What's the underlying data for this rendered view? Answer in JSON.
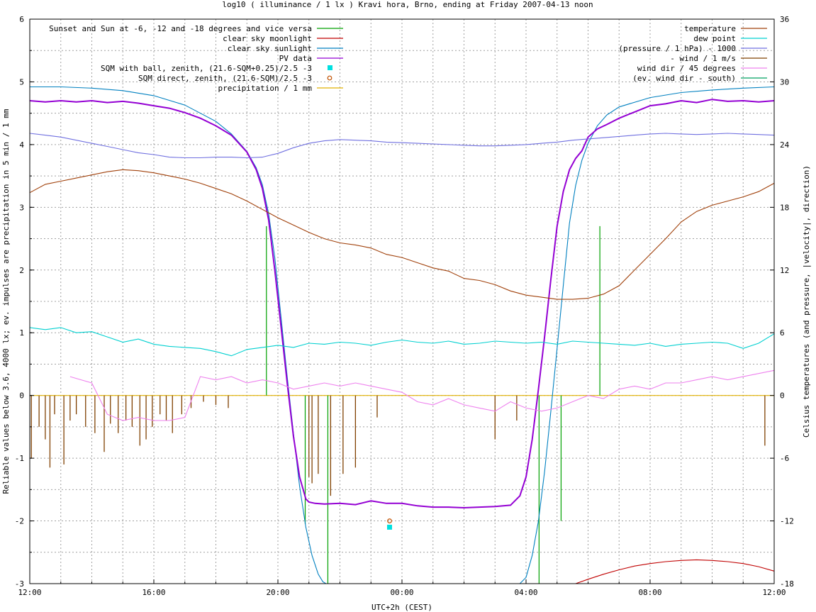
{
  "chart_data": {
    "type": "line",
    "title": "log10 ( illuminance / 1 lx ) Kravi hora, Brno, ending at Friday 2007-04-13 noon",
    "xlabel": "UTC+2h (CEST)",
    "ylabel": "Reliable values below 3.6, 4000 lx; ev. impulses are precipitation in 5 min / 1 mm",
    "y2label": "Celsius temperatures (and pressure, |velocity|, direction)",
    "xlim": [
      0,
      24
    ],
    "ylim": [
      -3,
      6
    ],
    "y2lim": [
      -18,
      36
    ],
    "grid": true,
    "x_tick_labels": [
      "12:00",
      "16:00",
      "20:00",
      "00:00",
      "04:00",
      "08:00",
      "12:00"
    ],
    "x_tick_values": [
      0,
      4,
      8,
      12,
      16,
      20,
      24
    ],
    "y_tick_labels": [
      "-3",
      "-2",
      "-1",
      "0",
      "1",
      "2",
      "3",
      "4",
      "5",
      "6"
    ],
    "y_tick_values": [
      -3,
      -2,
      -1,
      0,
      1,
      2,
      3,
      4,
      5,
      6
    ],
    "y2_tick_labels": [
      "-18",
      "-12",
      "-6",
      "0",
      "6",
      "12",
      "18",
      "24",
      "30",
      "36"
    ],
    "y2_tick_values": [
      -18,
      -12,
      -6,
      0,
      6,
      12,
      18,
      24,
      30,
      36
    ],
    "legend_left": [
      {
        "label": "Sunset and Sun at -6, -12 and -18 degrees and vice versa",
        "color": "#00a000",
        "style": "line"
      },
      {
        "label": "clear sky moonlight",
        "color": "#c00000",
        "style": "line"
      },
      {
        "label": "clear sky sunlight",
        "color": "#0080c0",
        "style": "line"
      },
      {
        "label": "PV data",
        "color": "#9400d3",
        "style": "line"
      },
      {
        "label": "SQM with ball, zenith, (21.6-SQM+0.25)/2.5 -3",
        "color": "#00e0e0",
        "style": "square"
      },
      {
        "label": "SQM direct, zenith, (21.6-SQM)/2.5 -3",
        "color": "#c05000",
        "style": "circle"
      },
      {
        "label": "precipitation / 1 mm",
        "color": "#e0b000",
        "style": "line"
      }
    ],
    "legend_right": [
      {
        "label": "temperature",
        "color": "#a0400a",
        "style": "line"
      },
      {
        "label": "dew point",
        "color": "#00d0d0",
        "style": "line"
      },
      {
        "label": "(pressure / 1 hPa) - 1000",
        "color": "#7070e0",
        "style": "line"
      },
      {
        "label": "- wind / 1 m/s",
        "color": "#804000",
        "style": "line"
      },
      {
        "label": "wind dir / 45 degrees",
        "color": "#ee82ee",
        "style": "line"
      },
      {
        "label": "(ev. wind dir - south)",
        "color": "#00a060",
        "style": "line"
      }
    ],
    "series": [
      {
        "name": "clear sky sunlight",
        "axis": "y1",
        "color": "#0080c0",
        "x": [
          0,
          1,
          2,
          3,
          4,
          5,
          6,
          6.5,
          7,
          7.3,
          7.5,
          7.7,
          7.9,
          8.1,
          8.3,
          8.5,
          8.7,
          8.9,
          9.1,
          9.3,
          9.45,
          9.55,
          9.6,
          15.8,
          16.0,
          16.2,
          16.4,
          16.6,
          16.8,
          17.0,
          17.2,
          17.4,
          17.6,
          17.8,
          18.0,
          18.3,
          18.6,
          19,
          20,
          21,
          22,
          23,
          24
        ],
        "y": [
          4.92,
          4.92,
          4.9,
          4.86,
          4.78,
          4.63,
          4.37,
          4.17,
          3.89,
          3.63,
          3.36,
          2.9,
          2.2,
          1.25,
          0.3,
          -0.6,
          -1.45,
          -2.1,
          -2.55,
          -2.85,
          -2.97,
          -3.0,
          -3.0,
          -3.0,
          -2.9,
          -2.55,
          -2.0,
          -1.2,
          -0.25,
          0.75,
          1.75,
          2.75,
          3.35,
          3.75,
          4.02,
          4.3,
          4.47,
          4.6,
          4.75,
          4.83,
          4.87,
          4.9,
          4.92
        ]
      },
      {
        "name": "PV data",
        "axis": "y1",
        "color": "#9400d3",
        "x": [
          0,
          0.5,
          1,
          1.5,
          2,
          2.5,
          3,
          3.5,
          4,
          4.5,
          5,
          5.5,
          6,
          6.5,
          7,
          7.3,
          7.5,
          7.7,
          7.9,
          8.1,
          8.3,
          8.5,
          8.7,
          8.9,
          9.0,
          9.2,
          9.5,
          10,
          10.5,
          11,
          11.5,
          12,
          12.5,
          13,
          13.5,
          14,
          14.5,
          15,
          15.5,
          15.8,
          16.0,
          16.2,
          16.4,
          16.6,
          16.8,
          17.0,
          17.2,
          17.4,
          17.6,
          17.8,
          18.0,
          18.3,
          18.6,
          19,
          19.5,
          20,
          20.5,
          21,
          21.5,
          22,
          22.5,
          23,
          23.5,
          24
        ],
        "y": [
          4.7,
          4.68,
          4.7,
          4.68,
          4.7,
          4.67,
          4.69,
          4.66,
          4.62,
          4.58,
          4.51,
          4.42,
          4.3,
          4.15,
          3.88,
          3.6,
          3.3,
          2.8,
          2.0,
          1.1,
          0.2,
          -0.65,
          -1.3,
          -1.65,
          -1.7,
          -1.72,
          -1.73,
          -1.72,
          -1.74,
          -1.68,
          -1.72,
          -1.72,
          -1.76,
          -1.78,
          -1.78,
          -1.79,
          -1.78,
          -1.77,
          -1.75,
          -1.6,
          -1.3,
          -0.7,
          0.1,
          0.95,
          1.85,
          2.7,
          3.25,
          3.6,
          3.78,
          3.9,
          4.12,
          4.25,
          4.32,
          4.42,
          4.52,
          4.62,
          4.65,
          4.7,
          4.67,
          4.72,
          4.69,
          4.7,
          4.68,
          4.7
        ]
      },
      {
        "name": "clear sky moonlight",
        "axis": "y1",
        "color": "#c00000",
        "x": [
          17.6,
          18.0,
          18.5,
          19,
          19.5,
          20,
          20.5,
          21,
          21.5,
          22,
          22.5,
          23,
          23.5,
          24
        ],
        "y": [
          -3.0,
          -2.93,
          -2.85,
          -2.78,
          -2.72,
          -2.68,
          -2.65,
          -2.63,
          -2.62,
          -2.63,
          -2.65,
          -2.68,
          -2.73,
          -2.8
        ]
      },
      {
        "name": "temperature",
        "axis": "y2",
        "color": "#a0400a",
        "x": [
          0,
          0.5,
          1,
          1.5,
          2,
          2.5,
          3,
          3.5,
          4,
          4.5,
          5,
          5.5,
          6,
          6.5,
          7,
          7.5,
          8,
          8.5,
          9,
          9.5,
          10,
          10.5,
          11,
          11.5,
          12,
          12.5,
          13,
          13.5,
          14,
          14.5,
          15,
          15.5,
          16,
          16.5,
          17,
          17.5,
          18,
          18.5,
          19,
          19.5,
          20,
          20.5,
          21,
          21.5,
          22,
          22.5,
          23,
          23.5,
          24
        ],
        "y": [
          19.4,
          20.2,
          20.5,
          20.8,
          21.1,
          21.4,
          21.6,
          21.5,
          21.3,
          21.0,
          20.7,
          20.3,
          19.8,
          19.3,
          18.6,
          17.8,
          17.0,
          16.3,
          15.6,
          15.0,
          14.6,
          14.4,
          14.1,
          13.5,
          13.2,
          12.7,
          12.2,
          11.9,
          11.2,
          11.0,
          10.6,
          10.0,
          9.6,
          9.4,
          9.2,
          9.2,
          9.3,
          9.7,
          10.5,
          12.0,
          13.5,
          15.0,
          16.6,
          17.6,
          18.2,
          18.6,
          19.0,
          19.5,
          20.3
        ]
      },
      {
        "name": "dew point",
        "axis": "y2",
        "color": "#00d0d0",
        "x": [
          0,
          0.5,
          1,
          1.5,
          2,
          2.5,
          3,
          3.5,
          4,
          4.5,
          5,
          5.5,
          6,
          6.5,
          7,
          7.5,
          8,
          8.5,
          9,
          9.5,
          10,
          10.5,
          11,
          11.5,
          12,
          12.5,
          13,
          13.5,
          14,
          14.5,
          15,
          15.5,
          16,
          16.5,
          17,
          17.5,
          18,
          18.5,
          19,
          19.5,
          20,
          20.5,
          21,
          21.5,
          22,
          22.5,
          23,
          23.5,
          24
        ],
        "y": [
          6.5,
          6.3,
          6.5,
          6.0,
          6.1,
          5.6,
          5.1,
          5.4,
          4.9,
          4.7,
          4.6,
          4.5,
          4.2,
          3.8,
          4.4,
          4.6,
          4.8,
          4.6,
          5.0,
          4.9,
          5.1,
          5.0,
          4.8,
          5.1,
          5.3,
          5.1,
          5.0,
          5.2,
          4.9,
          5.0,
          5.2,
          5.1,
          5.0,
          5.1,
          4.9,
          5.2,
          5.1,
          5.0,
          4.9,
          4.8,
          5.0,
          4.7,
          4.9,
          5.0,
          5.1,
          5.0,
          4.5,
          5.0,
          5.9
        ]
      },
      {
        "name": "(pressure / 1 hPa) - 1000",
        "axis": "y1",
        "color": "#7070e0",
        "x": [
          0,
          0.5,
          1,
          1.5,
          2,
          2.5,
          3,
          3.5,
          4,
          4.5,
          5,
          5.5,
          6,
          6.5,
          7,
          7.5,
          8,
          8.5,
          9,
          9.5,
          10,
          10.5,
          11,
          11.5,
          12,
          12.5,
          13,
          13.5,
          14,
          14.5,
          15,
          15.5,
          16,
          16.5,
          17,
          17.5,
          18,
          18.5,
          19,
          19.5,
          20,
          20.5,
          21,
          21.5,
          22,
          22.5,
          23,
          23.5,
          24
        ],
        "y": [
          4.18,
          4.15,
          4.12,
          4.07,
          4.02,
          3.97,
          3.92,
          3.87,
          3.84,
          3.8,
          3.79,
          3.79,
          3.8,
          3.8,
          3.79,
          3.8,
          3.86,
          3.95,
          4.02,
          4.06,
          4.08,
          4.07,
          4.06,
          4.04,
          4.03,
          4.02,
          4.01,
          4.0,
          3.99,
          3.98,
          3.98,
          3.99,
          4.0,
          4.02,
          4.04,
          4.07,
          4.09,
          4.11,
          4.13,
          4.15,
          4.17,
          4.18,
          4.17,
          4.16,
          4.17,
          4.18,
          4.17,
          4.16,
          4.15
        ]
      },
      {
        "name": "wind dir / 45 degrees",
        "axis": "y1",
        "color": "#ee82ee",
        "x": [
          1.3,
          2,
          2.5,
          3,
          3.5,
          4,
          4.5,
          5,
          5.5,
          6,
          6.5,
          7,
          7.5,
          8,
          8.5,
          9,
          9.5,
          10,
          10.5,
          11,
          11.5,
          12,
          12.5,
          13,
          13.5,
          14,
          14.5,
          15,
          15.5,
          16,
          16.5,
          17,
          17.5,
          18,
          18.5,
          19,
          19.5,
          20,
          20.5,
          21,
          21.5,
          22,
          22.5,
          23,
          23.5,
          24
        ],
        "y": [
          0.3,
          0.2,
          -0.3,
          -0.4,
          -0.35,
          -0.4,
          -0.4,
          -0.35,
          0.3,
          0.25,
          0.3,
          0.2,
          0.25,
          0.2,
          0.1,
          0.15,
          0.2,
          0.15,
          0.2,
          0.15,
          0.1,
          0.05,
          -0.1,
          -0.15,
          -0.05,
          -0.15,
          -0.2,
          -0.25,
          -0.1,
          -0.2,
          -0.25,
          -0.2,
          -0.1,
          0.0,
          -0.05,
          0.1,
          0.15,
          0.1,
          0.2,
          0.2,
          0.25,
          0.3,
          0.25,
          0.3,
          0.35,
          0.4
        ]
      }
    ],
    "wind_impulses": {
      "name": "- wind / 1 m/s",
      "color": "#804000",
      "x": [
        0.05,
        0.3,
        0.5,
        0.65,
        0.8,
        1.1,
        1.3,
        1.5,
        1.8,
        2.1,
        2.4,
        2.6,
        2.85,
        3.1,
        3.3,
        3.55,
        3.75,
        3.95,
        4.2,
        4.4,
        4.6,
        4.9,
        5.2,
        5.6,
        6.0,
        6.4,
        9.0,
        9.1,
        9.3,
        9.7,
        10.1,
        10.5,
        11.2,
        15.0,
        15.7,
        23.7
      ],
      "y": [
        -1.0,
        -0.5,
        -0.7,
        -1.15,
        -0.3,
        -1.1,
        -0.4,
        -0.3,
        -0.5,
        -0.6,
        -0.9,
        -0.45,
        -0.6,
        -0.4,
        -0.5,
        -0.8,
        -0.7,
        -0.5,
        -0.3,
        -0.4,
        -0.6,
        -0.3,
        -0.2,
        -0.1,
        -0.15,
        -0.2,
        -1.3,
        -1.4,
        -1.25,
        -1.6,
        -1.25,
        -1.15,
        -0.35,
        -0.7,
        -0.4,
        -0.8
      ]
    },
    "sun_markers": {
      "name": "Sunset and Sun at -6, -12 and -18 degrees and vice versa",
      "color": "#00a000",
      "x": [
        7.63,
        8.22,
        8.88,
        9.61,
        16.42,
        17.13,
        17.77,
        18.38
      ],
      "y": [
        2.7,
        0.0,
        -2.05,
        -3.0,
        -3.0,
        -2.0,
        0.0,
        2.7
      ]
    },
    "sqm_ball": {
      "x": [
        11.6
      ],
      "y": [
        -2.1
      ],
      "color": "#00e0e0"
    },
    "sqm_direct": {
      "x": [
        11.6
      ],
      "y": [
        -2.0
      ],
      "color": "#c05000"
    },
    "precipitation": {
      "name": "precipitation / 1 mm",
      "color": "#e0b000",
      "value": 0
    }
  }
}
